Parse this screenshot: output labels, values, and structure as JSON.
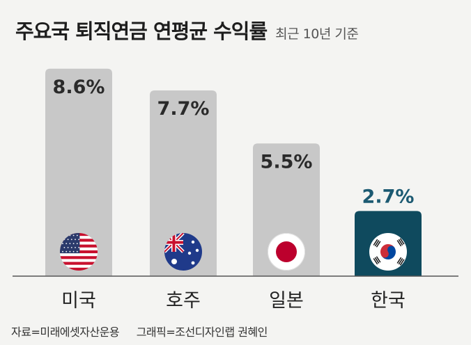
{
  "title": "주요국 퇴직연금 연평균 수익률",
  "subtitle": "최근 10년 기준",
  "chart_data": {
    "type": "bar",
    "categories": [
      "미국",
      "호주",
      "일본",
      "한국"
    ],
    "values": [
      8.6,
      7.7,
      5.5,
      2.7
    ],
    "value_labels": [
      "8.6%",
      "7.7%",
      "5.5%",
      "2.7%"
    ],
    "unit": "%",
    "ylim": [
      0,
      9.2
    ],
    "grid": false,
    "highlight_category": "한국"
  },
  "flags": [
    "us-flag-icon",
    "australia-flag-icon",
    "japan-flag-icon",
    "korea-flag-icon"
  ],
  "colors": {
    "bar": "#c8c8c8",
    "highlight_bar": "#0f4a5e",
    "highlight_label": "#1c5a72",
    "label": "#2a2a2a",
    "baseline": "#555555"
  },
  "footer": {
    "source": "자료=미래에셋자산운용",
    "graphic": "그래픽=조선디자인랩 권혜인"
  }
}
